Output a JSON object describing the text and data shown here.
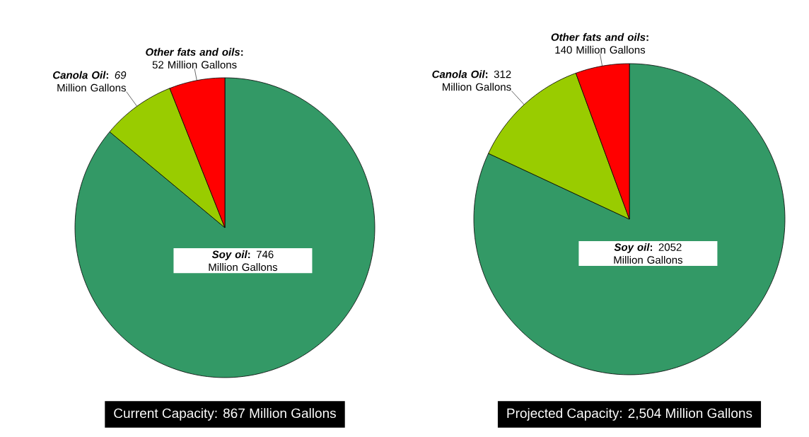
{
  "chart_data": [
    {
      "type": "pie",
      "title": "Current Capacity: 867 Million Gallons",
      "categories": [
        "Soy oil",
        "Canola Oil",
        "Other fats and oils"
      ],
      "values": [
        746,
        69,
        52
      ],
      "colors": [
        "#339966",
        "#99cc00",
        "#ff0000"
      ],
      "value_labels": [
        "**:** 746 Million Gallons",
        "**:** *69* Million Gallons",
        "**:** 52 Million Gallons"
      ]
    },
    {
      "type": "pie",
      "title": "Projected Capacity: 2,504 Million Gallons",
      "categories": [
        "Soy oil",
        "Canola Oil",
        "Other fats and oils"
      ],
      "values": [
        2052,
        312,
        140
      ],
      "colors": [
        "#339966",
        "#99cc00",
        "#ff0000"
      ],
      "value_labels": [
        "**:** 2052 Million Gallons",
        "**:** 312 Million Gallons",
        "**:** 140 Million Gallons"
      ]
    }
  ]
}
